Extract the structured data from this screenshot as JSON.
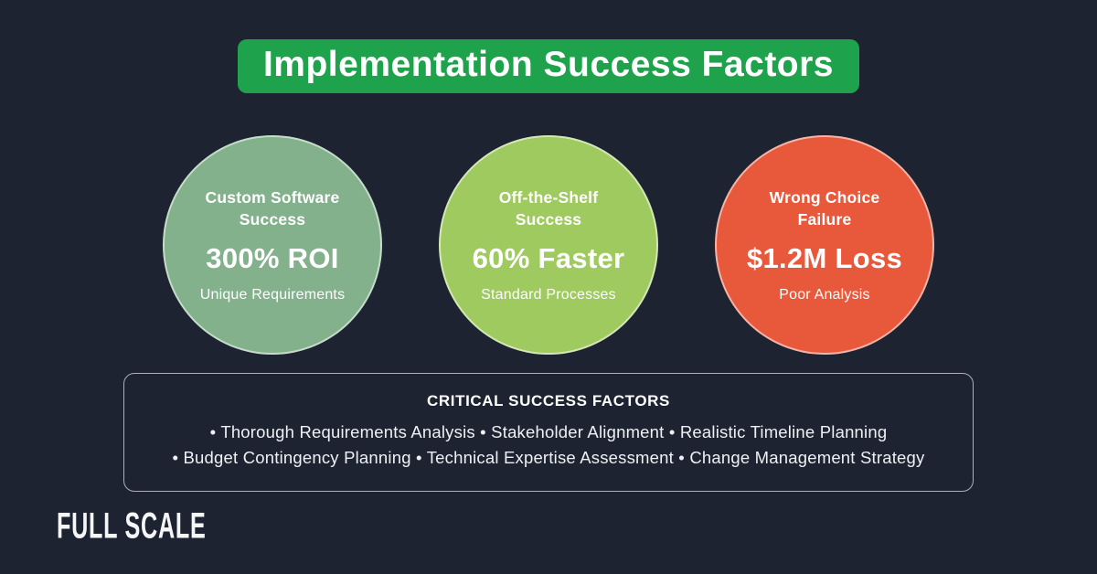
{
  "title": {
    "label": "Implementation Success Factors"
  },
  "circles": [
    {
      "name": "Custom Software Success",
      "stat": "300% ROI",
      "sub": "Unique Requirements",
      "color": "#82b18c"
    },
    {
      "name": "Off-the-Shelf Success",
      "stat": "60% Faster",
      "sub": "Standard Processes",
      "color": "#9fca5f"
    },
    {
      "name": "Wrong Choice Failure",
      "stat": "$1.2M Loss",
      "sub": "Poor Analysis",
      "color": "#e8593c"
    }
  ],
  "critical_box": {
    "title": "CRITICAL SUCCESS FACTORS",
    "line1": "• Thorough Requirements Analysis • Stakeholder Alignment • Realistic Timeline Planning",
    "line2": "• Budget Contingency Planning • Technical Expertise Assessment • Change Management Strategy"
  },
  "footer": {
    "logo": "FULL SCALE"
  },
  "colors": {
    "background": "#1d2330",
    "banner_green": "#1fa24c",
    "circle_sage": "#82b18c",
    "circle_lime": "#9fca5f",
    "circle_red": "#e8593c"
  }
}
